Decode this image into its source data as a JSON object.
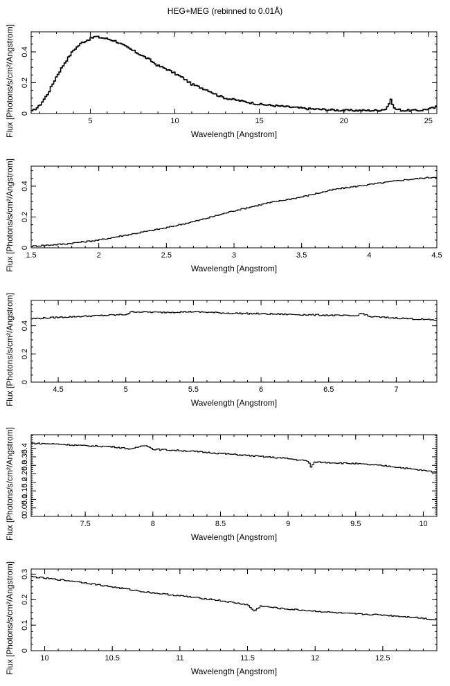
{
  "title": "HEG+MEG (rebinned to 0.01Å)",
  "chart_data": [
    {
      "type": "line",
      "xlabel": "Wavelength [Angstrom]",
      "ylabel": "Flux [Photons/s/cm²/Angstrom]",
      "xlim": [
        1.5,
        25.5
      ],
      "ylim": [
        0,
        0.53
      ],
      "xticks": [
        5,
        10,
        15,
        20,
        25
      ],
      "yticks": [
        0,
        0.2,
        0.4
      ],
      "x": [
        1.5,
        2,
        2.5,
        3,
        3.5,
        4,
        4.5,
        5,
        5.3,
        5.5,
        6,
        6.5,
        7,
        7.5,
        8,
        8.5,
        9,
        9.5,
        10,
        10.5,
        11,
        11.5,
        12,
        12.5,
        13,
        13.5,
        14,
        15,
        16,
        17,
        18,
        19,
        20,
        21,
        22,
        22.5,
        22.8,
        23,
        23.5,
        24,
        24.5,
        25,
        25.5
      ],
      "y": [
        0.01,
        0.05,
        0.13,
        0.24,
        0.33,
        0.41,
        0.46,
        0.485,
        0.5,
        0.495,
        0.485,
        0.47,
        0.44,
        0.41,
        0.38,
        0.35,
        0.31,
        0.29,
        0.26,
        0.23,
        0.19,
        0.17,
        0.15,
        0.12,
        0.1,
        0.09,
        0.08,
        0.06,
        0.05,
        0.04,
        0.03,
        0.025,
        0.02,
        0.02,
        0.02,
        0.03,
        0.09,
        0.03,
        0.02,
        0.02,
        0.02,
        0.03,
        0.04
      ]
    },
    {
      "type": "line",
      "xlabel": "Wavelength [Angstrom]",
      "ylabel": "Flux [Photons/s/cm²/Angstrom]",
      "xlim": [
        1.5,
        4.5
      ],
      "ylim": [
        0,
        0.53
      ],
      "xticks": [
        1.5,
        2,
        2.5,
        3,
        3.5,
        4,
        4.5
      ],
      "yticks": [
        0,
        0.2,
        0.4
      ],
      "x": [
        1.5,
        1.75,
        2,
        2.25,
        2.5,
        2.75,
        3,
        3.25,
        3.5,
        3.75,
        4,
        4.25,
        4.5
      ],
      "y": [
        0.01,
        0.025,
        0.05,
        0.09,
        0.13,
        0.18,
        0.24,
        0.29,
        0.33,
        0.38,
        0.41,
        0.44,
        0.46
      ]
    },
    {
      "type": "line",
      "xlabel": "Wavelength [Angstrom]",
      "ylabel": "Flux [Photons/s/cm²/Angstrom]",
      "xlim": [
        4.3,
        7.3
      ],
      "ylim": [
        0,
        0.58
      ],
      "xticks": [
        4.5,
        5,
        5.5,
        6,
        6.5,
        7
      ],
      "yticks": [
        0,
        0.2,
        0.4
      ],
      "x": [
        4.3,
        4.5,
        4.75,
        5,
        5.05,
        5.25,
        5.5,
        5.75,
        6,
        6.25,
        6.5,
        6.7,
        6.75,
        6.8,
        7,
        7.3
      ],
      "y": [
        0.45,
        0.46,
        0.47,
        0.48,
        0.5,
        0.495,
        0.5,
        0.49,
        0.485,
        0.48,
        0.475,
        0.47,
        0.49,
        0.465,
        0.455,
        0.44
      ]
    },
    {
      "type": "line",
      "xlabel": "Wavelength [Angstrom]",
      "ylabel": "Flux [Photons/s/cm²/Angstrom]",
      "xlim": [
        7.1,
        10.1
      ],
      "ylim": [
        0,
        0.48
      ],
      "xticks": [
        7.5,
        8,
        8.5,
        9,
        9.5,
        10
      ],
      "yticks": [
        0,
        0.05,
        0.1,
        0.15,
        0.2,
        0.25,
        0.3,
        0.35,
        0.4
      ],
      "x": [
        7.1,
        7.3,
        7.5,
        7.7,
        7.85,
        7.9,
        7.95,
        8,
        8.25,
        8.5,
        8.75,
        9,
        9.15,
        9.17,
        9.2,
        9.5,
        9.75,
        10,
        10.1
      ],
      "y": [
        0.43,
        0.425,
        0.415,
        0.41,
        0.395,
        0.41,
        0.42,
        0.395,
        0.385,
        0.37,
        0.355,
        0.34,
        0.325,
        0.29,
        0.32,
        0.31,
        0.295,
        0.27,
        0.26
      ]
    },
    {
      "type": "line",
      "xlabel": "Wavelength [Angstrom]",
      "ylabel": "Flux [Photons/s/cm²/Angstrom]",
      "xlim": [
        9.9,
        12.9
      ],
      "ylim": [
        0,
        0.32
      ],
      "xticks": [
        10,
        10.5,
        11,
        11.5,
        12,
        12.5
      ],
      "yticks": [
        0,
        0.1,
        0.2,
        0.3
      ],
      "x": [
        9.9,
        10.25,
        10.5,
        10.75,
        11,
        11.25,
        11.5,
        11.55,
        11.6,
        11.75,
        12,
        12.25,
        12.5,
        12.75,
        12.9
      ],
      "y": [
        0.29,
        0.27,
        0.25,
        0.23,
        0.215,
        0.2,
        0.18,
        0.155,
        0.175,
        0.165,
        0.155,
        0.145,
        0.14,
        0.13,
        0.12
      ]
    }
  ]
}
